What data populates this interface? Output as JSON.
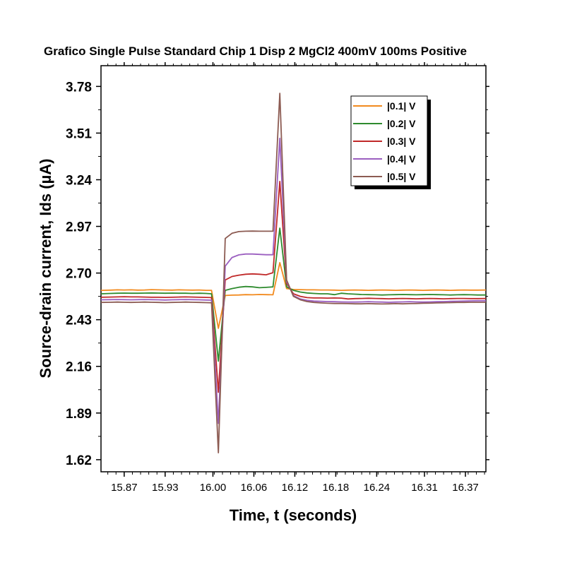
{
  "chart_data": {
    "type": "line",
    "title": "Grafico Single Pulse Standard Chip 1 Disp 2 MgCl2 400mV 100ms Positive",
    "xlabel": "Time, t (seconds)",
    "ylabel": "Source-drain current, Ids (µA)",
    "xlim": [
      15.836,
      16.4
    ],
    "ylim": [
      1.55,
      3.9
    ],
    "x_ticks": [
      "15.87",
      "15.93",
      "16.00",
      "16.06",
      "16.12",
      "16.18",
      "16.24",
      "16.31",
      "16.37"
    ],
    "x_tick_values": [
      15.87,
      15.93,
      16.0,
      16.06,
      16.12,
      16.18,
      16.24,
      16.31,
      16.37
    ],
    "y_ticks": [
      "1.62",
      "1.89",
      "2.16",
      "2.43",
      "2.70",
      "2.97",
      "3.24",
      "3.51",
      "3.78"
    ],
    "y_tick_values": [
      1.62,
      1.89,
      2.16,
      2.43,
      2.7,
      2.97,
      3.24,
      3.51,
      3.78
    ],
    "legend_position": "top-right",
    "grid": false,
    "x": [
      15.836,
      15.85,
      15.86,
      15.87,
      15.88,
      15.89,
      15.9,
      15.91,
      15.92,
      15.93,
      15.94,
      15.95,
      15.96,
      15.97,
      15.98,
      15.99,
      15.998,
      16.008,
      16.018,
      16.028,
      16.038,
      16.048,
      16.058,
      16.068,
      16.078,
      16.088,
      16.098,
      16.108,
      16.118,
      16.128,
      16.138,
      16.148,
      16.158,
      16.168,
      16.178,
      16.188,
      16.198,
      16.208,
      16.218,
      16.228,
      16.238,
      16.248,
      16.258,
      16.268,
      16.278,
      16.288,
      16.298,
      16.308,
      16.318,
      16.328,
      16.338,
      16.348,
      16.358,
      16.368,
      16.378,
      16.388,
      16.4
    ],
    "series": [
      {
        "name": "|0.1| V",
        "color": "#f28a1e",
        "values": [
          2.6,
          2.601,
          2.603,
          2.602,
          2.603,
          2.601,
          2.602,
          2.604,
          2.603,
          2.602,
          2.601,
          2.603,
          2.602,
          2.601,
          2.602,
          2.6,
          2.6,
          2.38,
          2.57,
          2.572,
          2.573,
          2.575,
          2.574,
          2.576,
          2.575,
          2.574,
          2.76,
          2.61,
          2.605,
          2.604,
          2.603,
          2.603,
          2.602,
          2.602,
          2.601,
          2.6,
          2.601,
          2.602,
          2.601,
          2.6,
          2.601,
          2.602,
          2.601,
          2.6,
          2.601,
          2.602,
          2.601,
          2.6,
          2.601,
          2.602,
          2.601,
          2.6,
          2.601,
          2.602,
          2.601,
          2.601,
          2.602
        ]
      },
      {
        "name": "|0.2| V",
        "color": "#2e8b2e",
        "values": [
          2.58,
          2.582,
          2.583,
          2.584,
          2.583,
          2.583,
          2.584,
          2.585,
          2.584,
          2.583,
          2.584,
          2.583,
          2.583,
          2.582,
          2.583,
          2.582,
          2.58,
          2.19,
          2.6,
          2.61,
          2.618,
          2.622,
          2.62,
          2.615,
          2.617,
          2.62,
          2.96,
          2.62,
          2.6,
          2.59,
          2.585,
          2.582,
          2.58,
          2.58,
          2.575,
          2.583,
          2.58,
          2.578,
          2.576,
          2.575,
          2.574,
          2.573,
          2.574,
          2.575,
          2.576,
          2.575,
          2.574,
          2.575,
          2.576,
          2.575,
          2.574,
          2.573,
          2.574,
          2.575,
          2.574,
          2.573,
          2.573
        ]
      },
      {
        "name": "|0.3| V",
        "color": "#c02828",
        "values": [
          2.56,
          2.561,
          2.562,
          2.563,
          2.562,
          2.562,
          2.561,
          2.56,
          2.56,
          2.559,
          2.56,
          2.561,
          2.562,
          2.561,
          2.56,
          2.559,
          2.558,
          2.01,
          2.66,
          2.68,
          2.688,
          2.693,
          2.695,
          2.693,
          2.69,
          2.702,
          3.23,
          2.64,
          2.58,
          2.565,
          2.558,
          2.556,
          2.556,
          2.555,
          2.556,
          2.555,
          2.55,
          2.552,
          2.553,
          2.554,
          2.553,
          2.552,
          2.551,
          2.552,
          2.553,
          2.552,
          2.551,
          2.552,
          2.553,
          2.552,
          2.551,
          2.552,
          2.553,
          2.553,
          2.552,
          2.552,
          2.553
        ]
      },
      {
        "name": "|0.4| V",
        "color": "#9b5fc0",
        "values": [
          2.545,
          2.546,
          2.547,
          2.546,
          2.545,
          2.546,
          2.547,
          2.546,
          2.545,
          2.544,
          2.545,
          2.546,
          2.547,
          2.546,
          2.545,
          2.544,
          2.543,
          1.83,
          2.74,
          2.79,
          2.805,
          2.81,
          2.81,
          2.808,
          2.806,
          2.806,
          3.48,
          2.65,
          2.57,
          2.55,
          2.542,
          2.538,
          2.536,
          2.535,
          2.534,
          2.533,
          2.532,
          2.532,
          2.533,
          2.534,
          2.533,
          2.532,
          2.531,
          2.532,
          2.533,
          2.534,
          2.533,
          2.532,
          2.533,
          2.534,
          2.535,
          2.536,
          2.537,
          2.538,
          2.539,
          2.54,
          2.54
        ]
      },
      {
        "name": "|0.5| V",
        "color": "#8c5b52",
        "values": [
          2.53,
          2.531,
          2.532,
          2.531,
          2.53,
          2.531,
          2.532,
          2.531,
          2.53,
          2.529,
          2.53,
          2.531,
          2.532,
          2.531,
          2.53,
          2.529,
          2.528,
          1.66,
          2.9,
          2.93,
          2.94,
          2.942,
          2.943,
          2.942,
          2.942,
          2.942,
          3.74,
          2.66,
          2.565,
          2.545,
          2.535,
          2.53,
          2.527,
          2.525,
          2.524,
          2.524,
          2.523,
          2.522,
          2.522,
          2.523,
          2.522,
          2.521,
          2.522,
          2.523,
          2.522,
          2.523,
          2.524,
          2.525,
          2.526,
          2.527,
          2.528,
          2.529,
          2.53,
          2.53,
          2.531,
          2.531,
          2.531
        ]
      }
    ]
  }
}
